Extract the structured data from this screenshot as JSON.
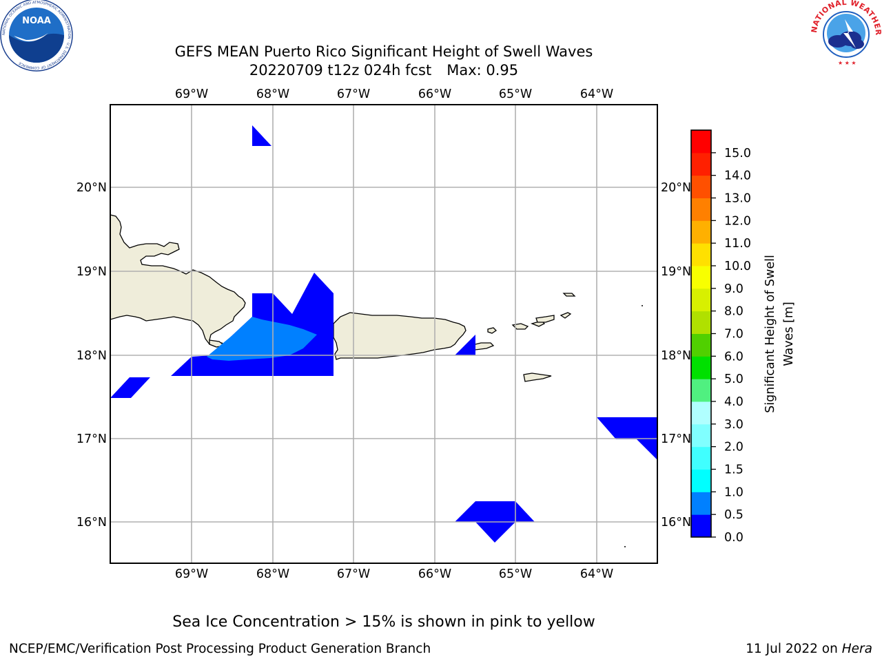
{
  "header": {
    "title_line1": "GEFS MEAN Puerto Rico Significant Height of Swell Waves",
    "run": "20220709 t12z 024h fcst",
    "max": "Max: 0.95"
  },
  "map": {
    "lon_ticks": [
      "69°W",
      "68°W",
      "67°W",
      "66°W",
      "65°W",
      "64°W"
    ],
    "lat_ticks": [
      "20°N",
      "19°N",
      "18°N",
      "17°N",
      "16°N"
    ],
    "lon_range": [
      -70.0,
      -63.25
    ],
    "lat_range": [
      15.5,
      21.0
    ],
    "land_color": "#efedda",
    "grid": true
  },
  "colorbar": {
    "label": "Significant Height of Swell Waves [m]",
    "tick_labels": [
      "0.0",
      "0.5",
      "1.0",
      "1.5",
      "2.0",
      "3.0",
      "4.0",
      "5.0",
      "6.0",
      "7.0",
      "8.0",
      "9.0",
      "10.0",
      "11.0",
      "12.0",
      "13.0",
      "14.0",
      "15.0"
    ],
    "colors": [
      "#0000ff",
      "#0080ff",
      "#00ffff",
      "#40ffff",
      "#80ffff",
      "#b0ffff",
      "#50f080",
      "#00e000",
      "#50d000",
      "#b0e000",
      "#d8f000",
      "#f8ff00",
      "#ffe000",
      "#ffb000",
      "#ff8000",
      "#ff5000",
      "#ff2000",
      "#ff0000"
    ]
  },
  "note": "Sea Ice Concentration > 15% is shown in pink to yellow",
  "footer": {
    "left": "NCEP/EMC/Verification Post Processing Product Generation Branch",
    "date": "11 Jul 2022 on",
    "system": "Hera"
  },
  "logos": {
    "noaa_text": "NOAA",
    "noaa_ring": "NATIONAL OCEANIC AND ATMOSPHERIC ADMINISTRATION · U.S. DEPARTMENT OF COMMERCE",
    "nws_ring": "NATIONAL WEATHER SERVICE"
  }
}
